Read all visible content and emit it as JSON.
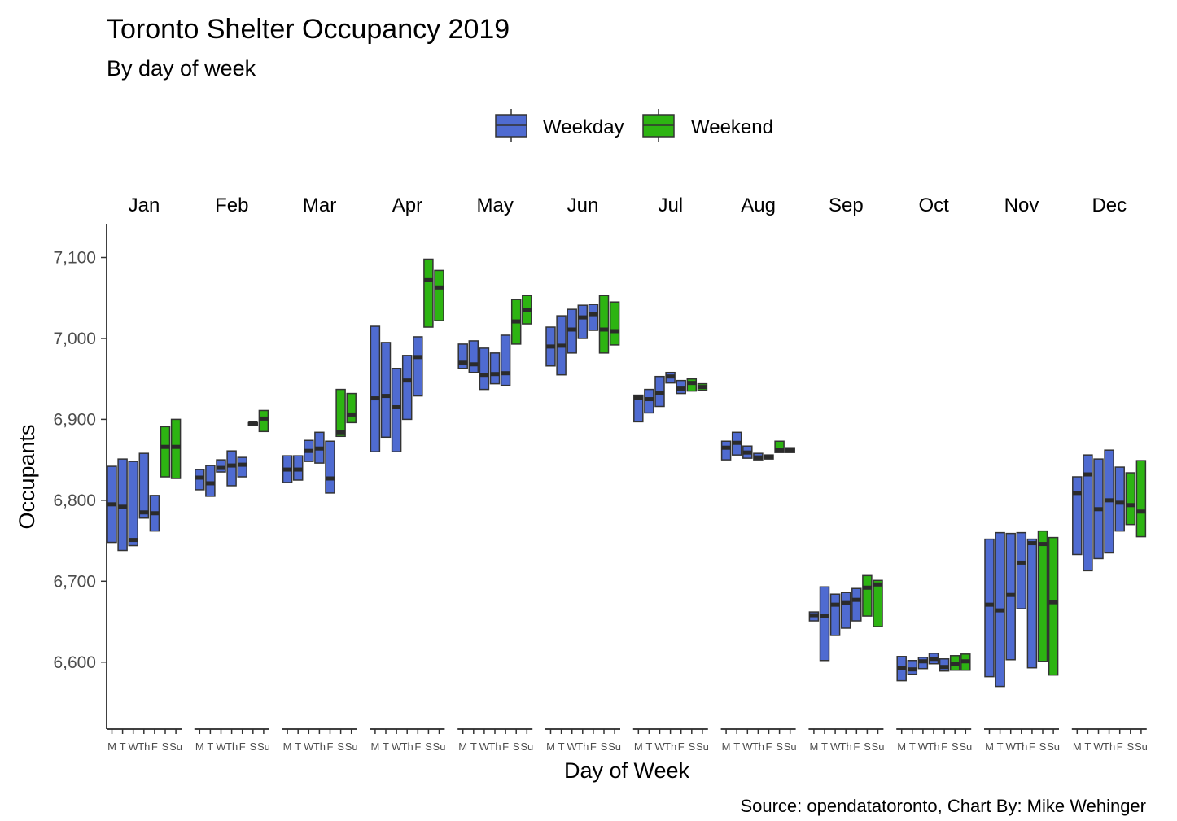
{
  "chart_data": {
    "type": "boxplot",
    "title": "Toronto Shelter Occupancy 2019",
    "subtitle": "By day of week",
    "xlabel": "Day of Week",
    "ylabel": "Occupants",
    "caption": "Source: opendatatoronto, Chart By: Mike Wehinger",
    "ylim": [
      6515,
      7140
    ],
    "yticks": [
      6600,
      6700,
      6800,
      6900,
      7000,
      7100
    ],
    "ytick_labels": [
      "6,600",
      "6,700",
      "6,800",
      "6,900",
      "7,000",
      "7,100"
    ],
    "legend": {
      "position": "top",
      "entries": [
        {
          "name": "Weekday",
          "color": "#4f6bd1"
        },
        {
          "name": "Weekend",
          "color": "#2db412"
        }
      ]
    },
    "day_labels": [
      "M",
      "T",
      "W",
      "Th",
      "F",
      "S",
      "Su"
    ],
    "day_types": [
      "Weekday",
      "Weekday",
      "Weekday",
      "Weekday",
      "Weekday",
      "Weekend",
      "Weekend"
    ],
    "months": [
      {
        "name": "Jan",
        "boxes": [
          [
            6748,
            6795,
            6842
          ],
          [
            6738,
            6792,
            6851
          ],
          [
            6744,
            6751,
            6848
          ],
          [
            6778,
            6785,
            6858
          ],
          [
            6762,
            6784,
            6806
          ],
          [
            6829,
            6866,
            6891
          ],
          [
            6827,
            6866,
            6900
          ]
        ]
      },
      {
        "name": "Feb",
        "boxes": [
          [
            6813,
            6828,
            6838
          ],
          [
            6805,
            6821,
            6843
          ],
          [
            6835,
            6840,
            6850
          ],
          [
            6818,
            6843,
            6861
          ],
          [
            6829,
            6844,
            6853
          ],
          [
            6893,
            6895,
            6896
          ],
          [
            6885,
            6901,
            6911
          ]
        ]
      },
      {
        "name": "Mar",
        "boxes": [
          [
            6822,
            6838,
            6855
          ],
          [
            6825,
            6838,
            6855
          ],
          [
            6848,
            6861,
            6874
          ],
          [
            6846,
            6864,
            6884
          ],
          [
            6809,
            6827,
            6873
          ],
          [
            6879,
            6884,
            6937
          ],
          [
            6896,
            6906,
            6932
          ]
        ]
      },
      {
        "name": "Apr",
        "boxes": [
          [
            6860,
            6926,
            7015
          ],
          [
            6878,
            6929,
            6995
          ],
          [
            6860,
            6915,
            6963
          ],
          [
            6900,
            6948,
            6979
          ],
          [
            6929,
            6977,
            7002
          ],
          [
            7014,
            7072,
            7098
          ],
          [
            7022,
            7063,
            7084
          ]
        ]
      },
      {
        "name": "May",
        "boxes": [
          [
            6963,
            6970,
            6993
          ],
          [
            6958,
            6968,
            6997
          ],
          [
            6937,
            6955,
            6988
          ],
          [
            6944,
            6956,
            6982
          ],
          [
            6942,
            6957,
            7004
          ],
          [
            6993,
            7021,
            7048
          ],
          [
            7018,
            7035,
            7053
          ]
        ]
      },
      {
        "name": "Jun",
        "boxes": [
          [
            6966,
            6990,
            7014
          ],
          [
            6955,
            6991,
            7028
          ],
          [
            6982,
            7011,
            7036
          ],
          [
            7000,
            7026,
            7041
          ],
          [
            7010,
            7030,
            7042
          ],
          [
            6982,
            7011,
            7053
          ],
          [
            6992,
            7009,
            7045
          ]
        ]
      },
      {
        "name": "Jul",
        "boxes": [
          [
            6897,
            6927,
            6930
          ],
          [
            6908,
            6925,
            6937
          ],
          [
            6916,
            6933,
            6953
          ],
          [
            6945,
            6953,
            6958
          ],
          [
            6932,
            6938,
            6948
          ],
          [
            6935,
            6945,
            6950
          ],
          [
            6936,
            6940,
            6944
          ]
        ]
      },
      {
        "name": "Aug",
        "boxes": [
          [
            6850,
            6865,
            6873
          ],
          [
            6856,
            6871,
            6884
          ],
          [
            6852,
            6859,
            6867
          ],
          [
            6850,
            6853,
            6858
          ],
          [
            6851,
            6854,
            6856
          ],
          [
            6859,
            6862,
            6873
          ],
          [
            6859,
            6862,
            6865
          ]
        ]
      },
      {
        "name": "Sep",
        "boxes": [
          [
            6651,
            6658,
            6662
          ],
          [
            6602,
            6657,
            6693
          ],
          [
            6633,
            6671,
            6684
          ],
          [
            6642,
            6673,
            6686
          ],
          [
            6651,
            6677,
            6691
          ],
          [
            6657,
            6692,
            6707
          ],
          [
            6644,
            6696,
            6701
          ]
        ]
      },
      {
        "name": "Oct",
        "boxes": [
          [
            6577,
            6593,
            6607
          ],
          [
            6585,
            6591,
            6602
          ],
          [
            6592,
            6601,
            6606
          ],
          [
            6598,
            6604,
            6611
          ],
          [
            6589,
            6594,
            6604
          ],
          [
            6590,
            6598,
            6608
          ],
          [
            6590,
            6601,
            6610
          ]
        ]
      },
      {
        "name": "Nov",
        "boxes": [
          [
            6582,
            6671,
            6752
          ],
          [
            6570,
            6664,
            6760
          ],
          [
            6603,
            6683,
            6759
          ],
          [
            6666,
            6723,
            6760
          ],
          [
            6593,
            6747,
            6752
          ],
          [
            6601,
            6746,
            6762
          ],
          [
            6584,
            6674,
            6754
          ]
        ]
      },
      {
        "name": "Dec",
        "boxes": [
          [
            6733,
            6809,
            6829
          ],
          [
            6713,
            6832,
            6856
          ],
          [
            6728,
            6789,
            6851
          ],
          [
            6735,
            6800,
            6862
          ],
          [
            6762,
            6797,
            6841
          ],
          [
            6770,
            6794,
            6834
          ],
          [
            6755,
            6786,
            6849
          ]
        ]
      }
    ]
  }
}
